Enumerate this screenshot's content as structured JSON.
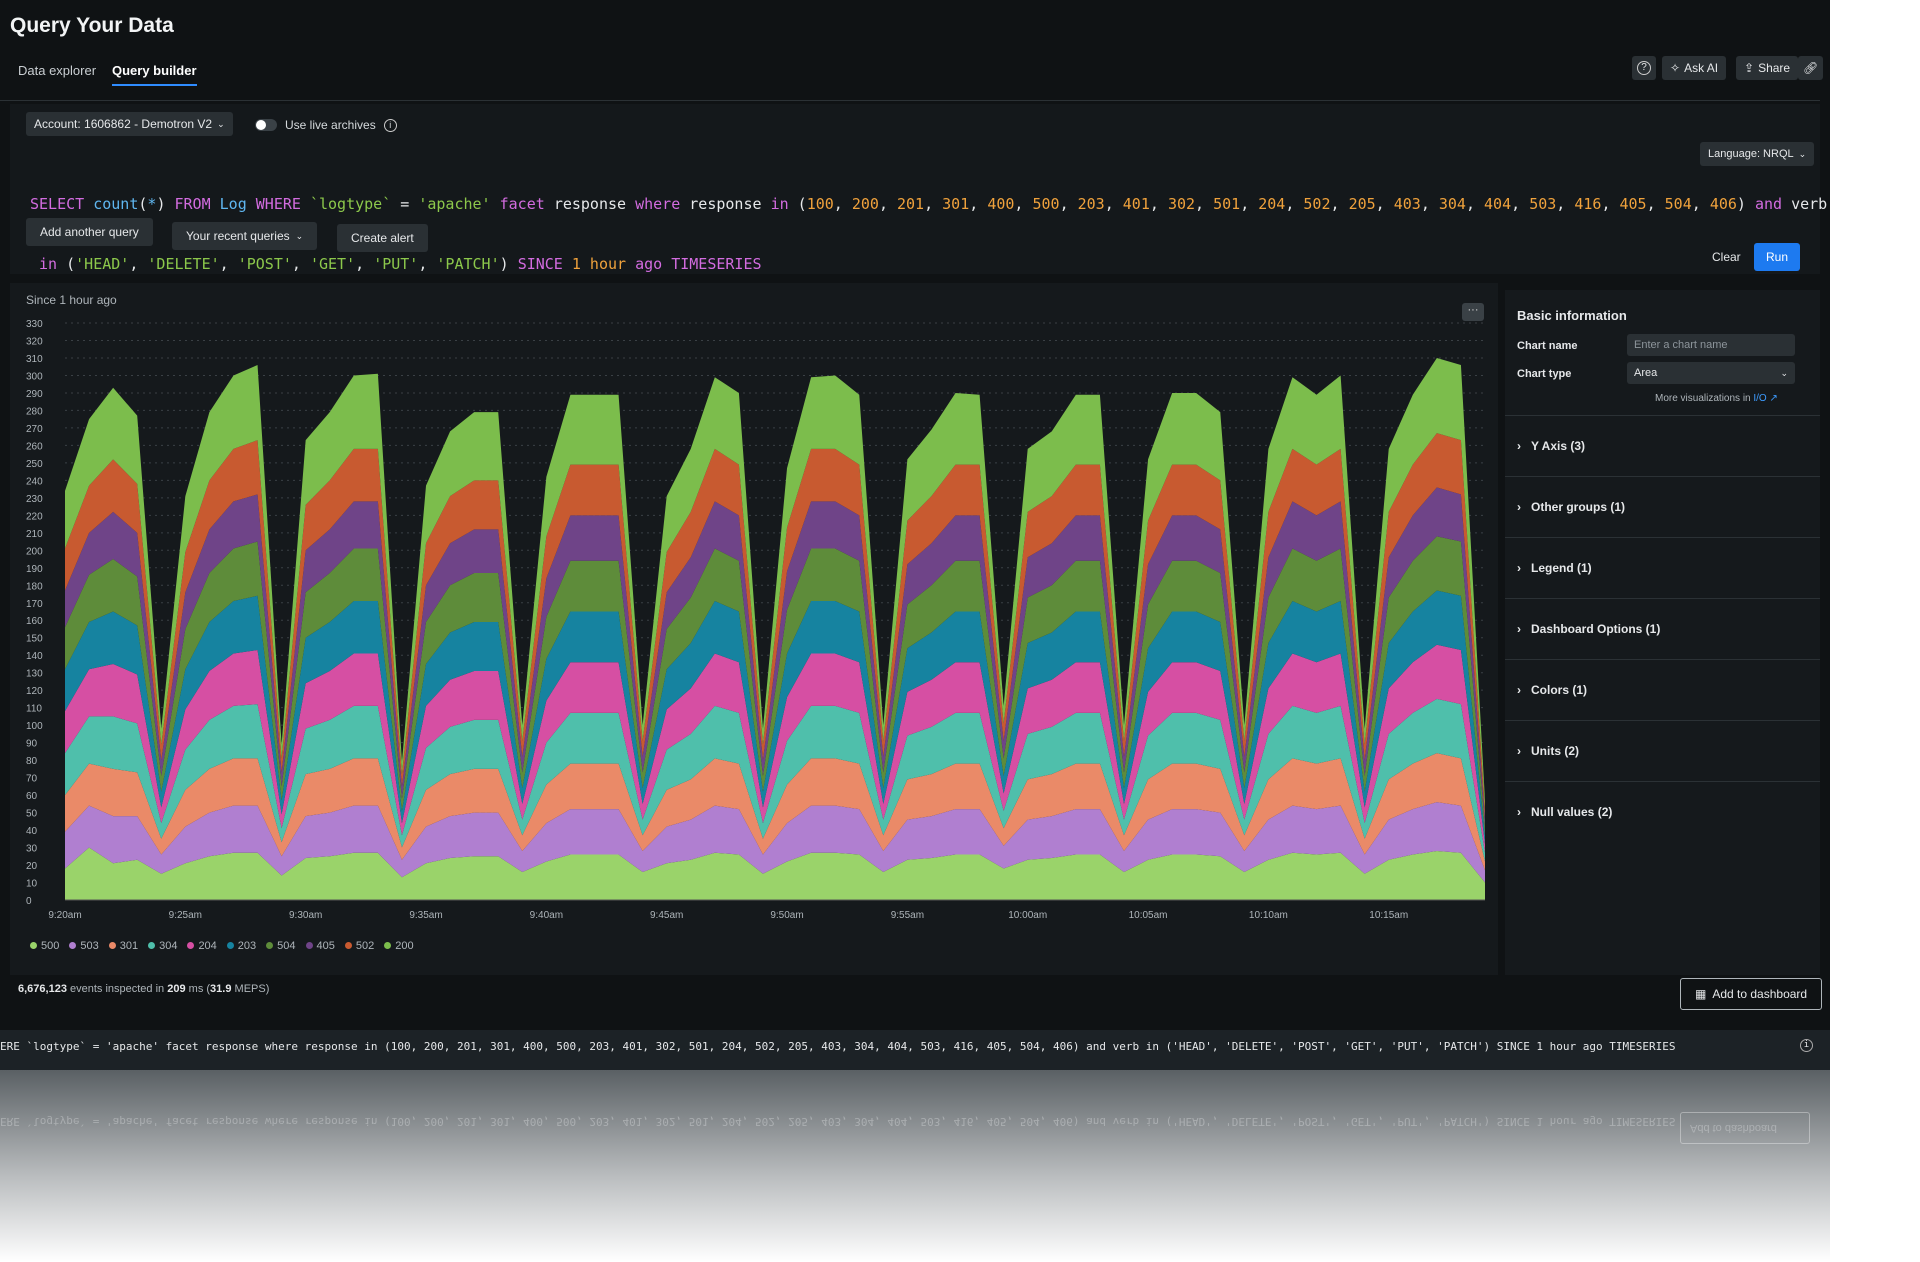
{
  "header": {
    "title": "Query Your Data",
    "tabs": [
      {
        "label": "Data explorer",
        "active": false
      },
      {
        "label": "Query builder",
        "active": true
      }
    ],
    "buttons": {
      "help_icon": "question-circle-icon",
      "ask_ai": "Ask AI",
      "share": "Share",
      "link_icon": "link-icon"
    }
  },
  "query_bar": {
    "account": "Account: 1606862 - Demotron V2",
    "live_archives_label": "Use live archives",
    "live_archives_on": false,
    "language": "Language: NRQL",
    "query_line1_tokens": [
      [
        "kw",
        "SELECT "
      ],
      [
        "fn",
        "count"
      ],
      [
        "",
        "("
      ],
      [
        "fn",
        "*"
      ],
      [
        "",
        ") "
      ],
      [
        "kw",
        "FROM "
      ],
      [
        "fn",
        "Log "
      ],
      [
        "kw",
        "WHERE "
      ],
      [
        "str",
        "`logtype`"
      ],
      [
        "",
        " = "
      ],
      [
        "str",
        "'apache' "
      ],
      [
        "kw",
        "facet "
      ],
      [
        "",
        "response "
      ],
      [
        "kw",
        "where "
      ],
      [
        "",
        "response "
      ],
      [
        "kw",
        "in "
      ],
      [
        "",
        "("
      ],
      [
        "num",
        "100"
      ],
      [
        "",
        ", "
      ],
      [
        "num",
        "200"
      ],
      [
        "",
        ", "
      ],
      [
        "num",
        "201"
      ],
      [
        "",
        ", "
      ],
      [
        "num",
        "301"
      ],
      [
        "",
        ", "
      ],
      [
        "num",
        "400"
      ],
      [
        "",
        ", "
      ],
      [
        "num",
        "500"
      ],
      [
        "",
        ", "
      ],
      [
        "num",
        "203"
      ],
      [
        "",
        ", "
      ],
      [
        "num",
        "401"
      ],
      [
        "",
        ", "
      ],
      [
        "num",
        "302"
      ],
      [
        "",
        ", "
      ],
      [
        "num",
        "501"
      ],
      [
        "",
        ", "
      ],
      [
        "num",
        "204"
      ],
      [
        "",
        ", "
      ],
      [
        "num",
        "502"
      ],
      [
        "",
        ", "
      ],
      [
        "num",
        "205"
      ],
      [
        "",
        ", "
      ],
      [
        "num",
        "403"
      ],
      [
        "",
        ", "
      ],
      [
        "num",
        "304"
      ],
      [
        "",
        ", "
      ],
      [
        "num",
        "404"
      ],
      [
        "",
        ", "
      ],
      [
        "num",
        "503"
      ],
      [
        "",
        ", "
      ],
      [
        "num",
        "416"
      ],
      [
        "",
        ", "
      ],
      [
        "num",
        "405"
      ],
      [
        "",
        ", "
      ],
      [
        "num",
        "504"
      ],
      [
        "",
        ", "
      ],
      [
        "num",
        "406"
      ],
      [
        "",
        ") "
      ],
      [
        "kw",
        "and "
      ],
      [
        "",
        "verb"
      ]
    ],
    "query_line2_tokens": [
      [
        "kw",
        " in "
      ],
      [
        "",
        "("
      ],
      [
        "str",
        "'HEAD'"
      ],
      [
        "",
        ", "
      ],
      [
        "str",
        "'DELETE'"
      ],
      [
        "",
        ", "
      ],
      [
        "str",
        "'POST'"
      ],
      [
        "",
        ", "
      ],
      [
        "str",
        "'GET'"
      ],
      [
        "",
        ", "
      ],
      [
        "str",
        "'PUT'"
      ],
      [
        "",
        ", "
      ],
      [
        "str",
        "'PATCH'"
      ],
      [
        "",
        ") "
      ],
      [
        "kw",
        "SINCE "
      ],
      [
        "num",
        "1 hour "
      ],
      [
        "kw",
        "ago TIMESERIES"
      ]
    ],
    "add_query": "Add another query",
    "recent_queries": "Your recent queries",
    "create_alert": "Create alert",
    "clear": "Clear",
    "run": "Run"
  },
  "chart_card": {
    "since": "Since 1 hour ago",
    "menu_icon": "ellipsis-icon"
  },
  "chart_data": {
    "type": "area",
    "stacked": true,
    "ylim": [
      0,
      330
    ],
    "yticks": [
      0,
      10,
      20,
      30,
      40,
      50,
      60,
      70,
      80,
      90,
      100,
      110,
      120,
      130,
      140,
      150,
      160,
      170,
      180,
      190,
      200,
      210,
      220,
      230,
      240,
      250,
      260,
      270,
      280,
      290,
      300,
      310,
      320,
      330
    ],
    "xtick_labels": [
      "9:20am",
      "9:25am",
      "9:30am",
      "9:35am",
      "9:40am",
      "9:45am",
      "9:50am",
      "9:55am",
      "10:00am",
      "10:05am",
      "10:10am",
      "10:15am"
    ],
    "x": [
      "9:20am",
      "9:21am",
      "9:22am",
      "9:23am",
      "9:24am",
      "9:25am",
      "9:26am",
      "9:27am",
      "9:28am",
      "9:29am",
      "9:30am",
      "9:31am",
      "9:32am",
      "9:33am",
      "9:34am",
      "9:35am",
      "9:36am",
      "9:37am",
      "9:38am",
      "9:39am",
      "9:40am",
      "9:41am",
      "9:42am",
      "9:43am",
      "9:44am",
      "9:45am",
      "9:46am",
      "9:47am",
      "9:48am",
      "9:49am",
      "9:50am",
      "9:51am",
      "9:52am",
      "9:53am",
      "9:54am",
      "9:55am",
      "9:56am",
      "9:57am",
      "9:58am",
      "9:59am",
      "10:00am",
      "10:01am",
      "10:02am",
      "10:03am",
      "10:04am",
      "10:05am",
      "10:06am",
      "10:07am",
      "10:08am",
      "10:09am",
      "10:10am",
      "10:11am",
      "10:12am",
      "10:13am",
      "10:14am",
      "10:15am",
      "10:16am",
      "10:17am",
      "10:18am",
      "10:19am"
    ],
    "grid": true,
    "legend_position": "bottom-left",
    "series": [
      {
        "name": "500",
        "color": "#9ad36a",
        "values": [
          18,
          30,
          21,
          23,
          15,
          21,
          25,
          27,
          27,
          14,
          24,
          25,
          27,
          27,
          13,
          21,
          24,
          25,
          25,
          16,
          22,
          26,
          26,
          26,
          16,
          21,
          23,
          27,
          26,
          15,
          22,
          27,
          27,
          26,
          16,
          23,
          24,
          26,
          26,
          18,
          23,
          24,
          26,
          26,
          16,
          23,
          26,
          26,
          25,
          16,
          23,
          27,
          26,
          27,
          15,
          23,
          26,
          28,
          27,
          10
        ]
      },
      {
        "name": "503",
        "color": "#b07fd0",
        "values": [
          21,
          24,
          27,
          25,
          11,
          21,
          25,
          27,
          27,
          11,
          24,
          25,
          27,
          27,
          10,
          21,
          24,
          25,
          25,
          12,
          22,
          26,
          26,
          26,
          12,
          21,
          23,
          27,
          26,
          11,
          22,
          27,
          27,
          26,
          12,
          23,
          24,
          26,
          26,
          13,
          23,
          24,
          26,
          26,
          12,
          23,
          26,
          26,
          25,
          12,
          23,
          27,
          26,
          27,
          11,
          23,
          26,
          28,
          27,
          7
        ]
      },
      {
        "name": "301",
        "color": "#ea8a68",
        "values": [
          21,
          24,
          27,
          25,
          9,
          21,
          25,
          27,
          27,
          8,
          24,
          25,
          27,
          27,
          7,
          21,
          24,
          25,
          25,
          9,
          22,
          26,
          26,
          26,
          9,
          21,
          23,
          27,
          26,
          9,
          22,
          27,
          27,
          26,
          9,
          23,
          24,
          26,
          26,
          10,
          23,
          24,
          26,
          26,
          9,
          23,
          26,
          26,
          25,
          9,
          23,
          27,
          26,
          27,
          9,
          23,
          26,
          28,
          27,
          5
        ]
      },
      {
        "name": "304",
        "color": "#4fbfab",
        "values": [
          24,
          27,
          30,
          28,
          9,
          23,
          28,
          30,
          31,
          8,
          26,
          28,
          30,
          30,
          7,
          24,
          27,
          28,
          28,
          9,
          24,
          29,
          29,
          29,
          9,
          23,
          26,
          30,
          29,
          9,
          25,
          30,
          30,
          29,
          9,
          25,
          27,
          29,
          29,
          10,
          26,
          27,
          29,
          29,
          9,
          25,
          29,
          29,
          28,
          9,
          26,
          30,
          29,
          30,
          9,
          26,
          29,
          31,
          31,
          5
        ]
      },
      {
        "name": "204",
        "color": "#d64fa3",
        "values": [
          24,
          27,
          30,
          28,
          9,
          23,
          28,
          30,
          31,
          8,
          26,
          28,
          30,
          30,
          7,
          24,
          27,
          28,
          28,
          9,
          24,
          29,
          29,
          29,
          9,
          23,
          26,
          30,
          29,
          9,
          25,
          30,
          30,
          29,
          9,
          25,
          27,
          29,
          29,
          10,
          26,
          27,
          29,
          29,
          9,
          25,
          29,
          29,
          28,
          9,
          26,
          30,
          29,
          30,
          9,
          26,
          29,
          31,
          31,
          5
        ]
      },
      {
        "name": "203",
        "color": "#1683a0",
        "values": [
          24,
          27,
          30,
          28,
          9,
          23,
          28,
          30,
          31,
          8,
          26,
          28,
          30,
          30,
          7,
          24,
          27,
          28,
          28,
          9,
          24,
          29,
          29,
          29,
          9,
          23,
          26,
          30,
          29,
          9,
          25,
          30,
          30,
          29,
          9,
          25,
          27,
          29,
          29,
          10,
          26,
          27,
          29,
          29,
          9,
          25,
          29,
          29,
          28,
          9,
          26,
          30,
          29,
          30,
          9,
          26,
          29,
          31,
          31,
          5
        ]
      },
      {
        "name": "504",
        "color": "#5e8c3a",
        "values": [
          24,
          27,
          30,
          28,
          9,
          23,
          28,
          30,
          31,
          8,
          26,
          28,
          30,
          30,
          7,
          24,
          27,
          28,
          28,
          9,
          24,
          29,
          29,
          29,
          9,
          23,
          26,
          30,
          29,
          9,
          25,
          30,
          30,
          29,
          9,
          25,
          27,
          29,
          29,
          10,
          26,
          27,
          29,
          29,
          9,
          25,
          29,
          29,
          28,
          9,
          26,
          30,
          29,
          30,
          9,
          26,
          29,
          31,
          31,
          5
        ]
      },
      {
        "name": "405",
        "color": "#6f4488",
        "values": [
          21,
          24,
          27,
          25,
          9,
          21,
          25,
          27,
          27,
          8,
          24,
          25,
          27,
          27,
          7,
          21,
          24,
          25,
          25,
          9,
          22,
          26,
          26,
          26,
          9,
          21,
          23,
          27,
          26,
          9,
          22,
          27,
          27,
          26,
          9,
          23,
          24,
          26,
          26,
          10,
          23,
          24,
          26,
          26,
          9,
          23,
          26,
          26,
          25,
          9,
          23,
          27,
          26,
          27,
          9,
          23,
          26,
          28,
          27,
          5
        ]
      },
      {
        "name": "502",
        "color": "#c85a30",
        "values": [
          24,
          27,
          30,
          28,
          9,
          23,
          28,
          30,
          31,
          8,
          26,
          28,
          30,
          30,
          7,
          24,
          27,
          28,
          28,
          9,
          24,
          29,
          29,
          29,
          9,
          23,
          26,
          30,
          29,
          9,
          25,
          30,
          30,
          29,
          9,
          25,
          27,
          29,
          29,
          10,
          26,
          27,
          29,
          29,
          9,
          25,
          29,
          29,
          28,
          9,
          26,
          30,
          29,
          30,
          9,
          26,
          29,
          31,
          31,
          5
        ]
      },
      {
        "name": "200",
        "color": "#7cbd4c",
        "values": [
          33,
          38,
          41,
          39,
          9,
          32,
          39,
          42,
          43,
          8,
          37,
          39,
          42,
          43,
          7,
          33,
          37,
          39,
          39,
          9,
          34,
          40,
          40,
          40,
          9,
          32,
          36,
          41,
          41,
          9,
          34,
          41,
          42,
          40,
          9,
          35,
          38,
          41,
          40,
          10,
          36,
          37,
          40,
          40,
          9,
          35,
          41,
          41,
          39,
          9,
          36,
          41,
          40,
          42,
          9,
          36,
          40,
          43,
          43,
          5
        ]
      }
    ]
  },
  "stats": {
    "events": "6,676,123",
    "mid1": " events inspected in ",
    "ms": "209",
    "mid2": " ms (",
    "meps": "31.9",
    "end": " MEPS)"
  },
  "add_to_dashboard": "Add to dashboard",
  "side_panel": {
    "heading": "Basic information",
    "chart_name_label": "Chart name",
    "chart_name_placeholder": "Enter a chart name",
    "chart_type_label": "Chart type",
    "chart_type_value": "Area",
    "more_viz": "More visualizations in ",
    "more_viz_link": "I/O",
    "sections": [
      "Y Axis (3)",
      "Other groups (1)",
      "Legend (1)",
      "Dashboard Options (1)",
      "Colors (1)",
      "Units (2)",
      "Null values (2)"
    ]
  },
  "bottom_query": "ERE `logtype` = 'apache' facet response where response in (100, 200, 201, 301, 400, 500, 203, 401, 302, 501, 204, 502, 205, 403, 304, 404, 503, 416, 405, 504, 406) and verb in ('HEAD', 'DELETE', 'POST', 'GET', 'PUT', 'PATCH') SINCE 1 hour ago TIMESERIES"
}
